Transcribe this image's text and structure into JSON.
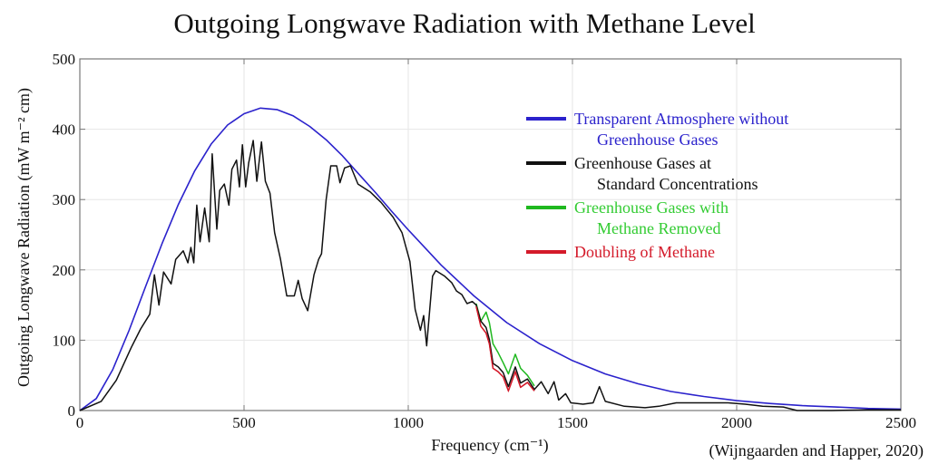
{
  "chart_data": {
    "type": "line",
    "title": "Outgoing Longwave Radiation with Methane Level",
    "xlabel": "Frequency (cm⁻¹)",
    "ylabel": "Outgoing Longwave Radiation (mW m⁻² cm)",
    "citation": "(Wijngaarden and Happer, 2020)",
    "xlim": [
      0,
      2500
    ],
    "ylim": [
      0,
      500
    ],
    "xticks": [
      0,
      500,
      1000,
      1500,
      2000,
      2500
    ],
    "yticks": [
      0,
      100,
      200,
      300,
      400,
      500
    ],
    "grid": true,
    "legend_position": "top-right",
    "series": [
      {
        "name": "Transparent Atmosphere without Greenhouse Gases",
        "legend_lines": [
          "Transparent Atmosphere without",
          "Greenhouse Gases"
        ],
        "color": "#2b22cc",
        "text_color": "#2b22cc",
        "x": [
          0,
          50,
          100,
          150,
          200,
          250,
          300,
          350,
          400,
          450,
          500,
          550,
          600,
          650,
          700,
          750,
          800,
          850,
          900,
          950,
          1000,
          1100,
          1200,
          1300,
          1400,
          1500,
          1600,
          1700,
          1800,
          1900,
          2000,
          2100,
          2200,
          2300,
          2400,
          2500
        ],
        "y": [
          0,
          17,
          58,
          114,
          176,
          237,
          293,
          341,
          379,
          406,
          422,
          430,
          428,
          419,
          404,
          385,
          362,
          336,
          310,
          283,
          257,
          207,
          163,
          125,
          95,
          71,
          52,
          38,
          27,
          20,
          14,
          10,
          7,
          5,
          3,
          2
        ]
      },
      {
        "name": "Greenhouse Gases at Standard Concentrations",
        "legend_lines": [
          "Greenhouse Gases at",
          "Standard Concentrations"
        ],
        "color": "#111111",
        "text_color": "#111111",
        "x": [
          0,
          65,
          111,
          157,
          185,
          213,
          227,
          241,
          255,
          278,
          292,
          315,
          329,
          338,
          347,
          356,
          366,
          380,
          394,
          403,
          417,
          426,
          440,
          454,
          463,
          477,
          486,
          495,
          505,
          514,
          528,
          539,
          553,
          565,
          579,
          593,
          611,
          630,
          653,
          665,
          677,
          694,
          713,
          727,
          736,
          750,
          764,
          782,
          792,
          806,
          824,
          847,
          884,
          917,
          954,
          981,
          1005,
          1021,
          1037,
          1047,
          1056,
          1074,
          1084,
          1111,
          1132,
          1147,
          1163,
          1179,
          1195,
          1207,
          1221,
          1237,
          1247,
          1258,
          1274,
          1289,
          1305,
          1326,
          1342,
          1363,
          1384,
          1405,
          1426,
          1444,
          1458,
          1479,
          1495,
          1532,
          1563,
          1582,
          1600,
          1658,
          1721,
          1763,
          1816,
          1868,
          1921,
          1974,
          2026,
          2079,
          2142,
          2184,
          2289,
          2395,
          2500
        ],
        "y": [
          0,
          13,
          43,
          90,
          116,
          137,
          193,
          150,
          197,
          180,
          215,
          227,
          210,
          232,
          210,
          292,
          240,
          288,
          240,
          365,
          258,
          313,
          322,
          292,
          343,
          356,
          318,
          378,
          318,
          352,
          384,
          326,
          382,
          326,
          309,
          253,
          215,
          163,
          163,
          185,
          159,
          142,
          193,
          215,
          223,
          300,
          348,
          348,
          324,
          345,
          348,
          322,
          311,
          296,
          275,
          253,
          212,
          144,
          114,
          135,
          92,
          191,
          199,
          191,
          182,
          170,
          165,
          152,
          155,
          150,
          127,
          118,
          101,
          67,
          62,
          54,
          34,
          62,
          39,
          45,
          30,
          41,
          24,
          41,
          15,
          24,
          11,
          9,
          11,
          34,
          13,
          6,
          4,
          6,
          11,
          11,
          11,
          11,
          9,
          6,
          5,
          0,
          0,
          1,
          1
        ]
      },
      {
        "name": "Greenhouse Gases with Methane Removed",
        "legend_lines": [
          "Greenhouse Gases with",
          "Methane Removed"
        ],
        "color": "#1fb81f",
        "text_color": "#33cc33",
        "x": [
          1207,
          1221,
          1237,
          1247,
          1258,
          1274,
          1289,
          1305,
          1326,
          1342,
          1363,
          1384
        ],
        "y": [
          152,
          127,
          140,
          125,
          95,
          82,
          68,
          52,
          80,
          60,
          50,
          35
        ]
      },
      {
        "name": "Doubling of Methane",
        "legend_lines": [
          "Doubling of Methane"
        ],
        "color": "#d41a2a",
        "text_color": "#d41a2a",
        "x": [
          1207,
          1221,
          1237,
          1247,
          1258,
          1274,
          1289,
          1305,
          1326,
          1342,
          1363,
          1384
        ],
        "y": [
          148,
          120,
          110,
          95,
          60,
          55,
          48,
          28,
          55,
          33,
          40,
          28
        ]
      }
    ]
  }
}
